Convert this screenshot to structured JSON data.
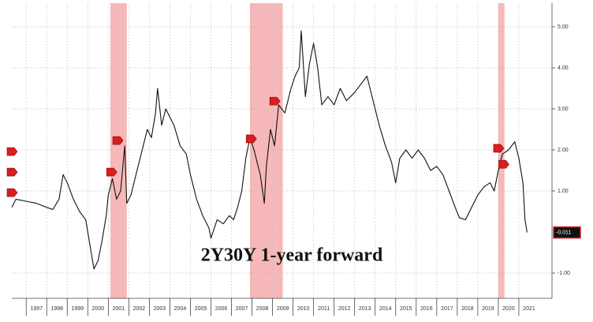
{
  "chart_data": {
    "type": "line",
    "annotation": "2Y30Y 1-year forward",
    "xlim": [
      1996.3,
      2022.5
    ],
    "xticks": [
      1997,
      1998,
      1999,
      2000,
      2001,
      2002,
      2003,
      2004,
      2005,
      2006,
      2007,
      2008,
      2009,
      2010,
      2011,
      2012,
      2013,
      2014,
      2015,
      2016,
      2017,
      2018,
      2019,
      2020,
      2021
    ],
    "ylim": [
      -1.5,
      5.5
    ],
    "yticks": [
      {
        "value": 5,
        "label": "5.00"
      },
      {
        "value": 4,
        "label": "4.00"
      },
      {
        "value": 3,
        "label": "3.00"
      },
      {
        "value": 2,
        "label": "2.00"
      },
      {
        "value": 1,
        "label": "1.00"
      },
      {
        "value": -1,
        "label": "-1.00"
      }
    ],
    "grid": true,
    "shaded_periods": [
      [
        2001.1,
        2001.9
      ],
      [
        2007.9,
        2009.5
      ],
      [
        2020.0,
        2020.3
      ]
    ],
    "shade_color": "#f4a6a6",
    "marker_color": "#d81e1e",
    "markers": {
      "x": [
        1996.3,
        1996.3,
        1996.3,
        2001.15,
        2001.45,
        2007.95,
        2009.1,
        2020.0,
        2020.25
      ],
      "y": [
        1.96,
        1.46,
        0.96,
        1.46,
        2.23,
        2.27,
        3.19,
        2.04,
        1.65
      ]
    },
    "series": [
      {
        "name": "2Y30Y 1-year forward",
        "color": "#111111",
        "x": [
          1996.3,
          1996.5,
          1997.0,
          1997.5,
          1998.0,
          1998.3,
          1998.6,
          1998.8,
          1999.0,
          1999.3,
          1999.6,
          1999.9,
          2000.1,
          2000.3,
          2000.5,
          2000.7,
          2000.9,
          2001.0,
          2001.2,
          2001.4,
          2001.6,
          2001.8,
          2001.9,
          2002.1,
          2002.3,
          2002.6,
          2002.9,
          2003.1,
          2003.3,
          2003.4,
          2003.6,
          2003.8,
          2004.0,
          2004.2,
          2004.5,
          2004.8,
          2005.0,
          2005.3,
          2005.6,
          2005.9,
          2006.0,
          2006.3,
          2006.6,
          2006.9,
          2007.1,
          2007.3,
          2007.5,
          2007.7,
          2007.9,
          2008.1,
          2008.4,
          2008.6,
          2008.7,
          2008.9,
          2009.1,
          2009.3,
          2009.6,
          2009.9,
          2010.1,
          2010.3,
          2010.4,
          2010.6,
          2010.8,
          2011.0,
          2011.2,
          2011.4,
          2011.7,
          2012.0,
          2012.3,
          2012.6,
          2013.0,
          2013.3,
          2013.6,
          2013.9,
          2014.2,
          2014.5,
          2014.8,
          2015.0,
          2015.2,
          2015.5,
          2015.8,
          2016.1,
          2016.4,
          2016.7,
          2017.0,
          2017.3,
          2017.6,
          2017.9,
          2018.1,
          2018.4,
          2018.7,
          2019.0,
          2019.3,
          2019.6,
          2019.8,
          2020.0,
          2020.2,
          2020.5,
          2020.8,
          2021.0,
          2021.2,
          2021.3,
          2021.4
        ],
        "values": [
          0.6,
          0.8,
          0.75,
          0.7,
          0.6,
          0.55,
          0.8,
          1.4,
          1.2,
          0.8,
          0.5,
          0.3,
          -0.3,
          -0.9,
          -0.7,
          -0.2,
          0.4,
          0.9,
          1.3,
          0.8,
          1.0,
          2.1,
          0.7,
          0.9,
          1.3,
          1.9,
          2.5,
          2.3,
          2.9,
          3.5,
          2.6,
          3.0,
          2.8,
          2.6,
          2.1,
          1.9,
          1.4,
          0.8,
          0.4,
          0.1,
          -0.15,
          0.3,
          0.2,
          0.4,
          0.3,
          0.6,
          1.0,
          1.8,
          2.3,
          2.0,
          1.4,
          0.7,
          1.6,
          2.5,
          2.1,
          3.1,
          2.9,
          3.5,
          3.8,
          4.0,
          4.9,
          3.3,
          4.1,
          4.6,
          4.0,
          3.1,
          3.3,
          3.1,
          3.5,
          3.2,
          3.4,
          3.6,
          3.8,
          3.2,
          2.6,
          2.1,
          1.7,
          1.2,
          1.8,
          2.0,
          1.8,
          2.0,
          1.8,
          1.5,
          1.6,
          1.4,
          1.0,
          0.6,
          0.35,
          0.3,
          0.6,
          0.9,
          1.1,
          1.2,
          1.0,
          1.5,
          1.9,
          2.0,
          2.2,
          1.8,
          1.2,
          0.3,
          -0.011
        ]
      }
    ]
  }
}
